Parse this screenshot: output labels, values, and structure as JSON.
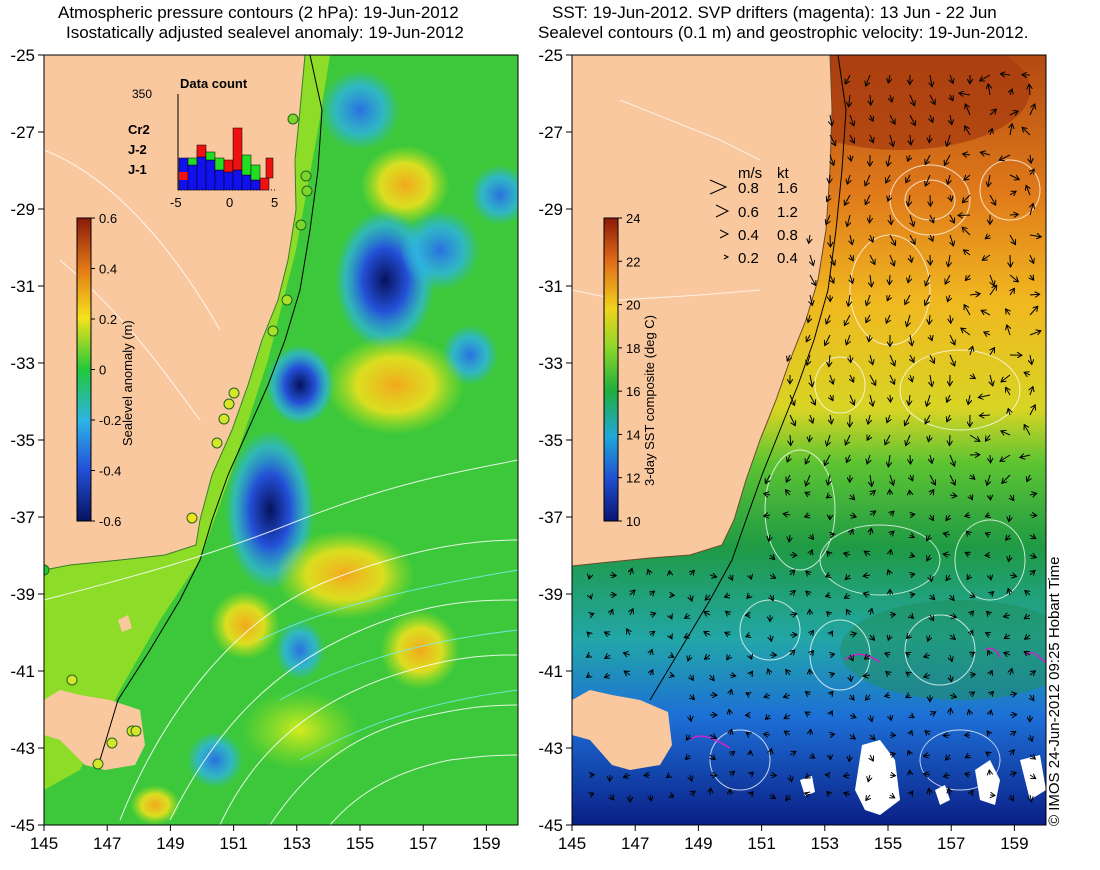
{
  "left_map": {
    "title_line1": "Atmospheric pressure contours (2 hPa): 19-Jun-2012",
    "title_line2": "Isostatically adjusted sealevel anomaly: 19-Jun-2012",
    "colorbar": {
      "label": "Sealevel anomaly (m)",
      "ticks": [
        "0.6",
        "0.4",
        "0.2",
        "0",
        "-0.2",
        "-0.4",
        "-0.6"
      ],
      "range": [
        -0.6,
        0.6
      ]
    },
    "inset": {
      "title": "Data count",
      "y_max_label": "350",
      "x_ticks": [
        "-5",
        "0",
        "5"
      ],
      "x_range": [
        -5,
        5
      ],
      "legend": [
        {
          "label": "Cr2",
          "color": "#22dd22"
        },
        {
          "label": "J-2",
          "color": "#ee1111"
        },
        {
          "label": "J-1",
          "color": "#1111ee"
        }
      ]
    }
  },
  "right_map": {
    "title_line1": "SST: 19-Jun-2012. SVP drifters (magenta): 13 Jun - 22 Jun",
    "title_line2": "Sealevel contours (0.1 m) and geostrophic velocity: 19-Jun-2012.",
    "colorbar": {
      "label": "3-day SST composite (deg C)",
      "ticks": [
        "24",
        "22",
        "20",
        "18",
        "16",
        "14",
        "12",
        "10"
      ],
      "range": [
        10,
        24
      ]
    },
    "velocity_legend": {
      "header_ms": "m/s",
      "header_kt": "kt",
      "rows": [
        {
          "ms": "0.8",
          "kt": "1.6"
        },
        {
          "ms": "0.6",
          "kt": "1.2"
        },
        {
          "ms": "0.4",
          "kt": "0.8"
        },
        {
          "ms": "0.2",
          "kt": "0.4"
        }
      ]
    }
  },
  "axes": {
    "lat_ticks": [
      "-25",
      "-27",
      "-29",
      "-31",
      "-33",
      "-35",
      "-37",
      "-39",
      "-41",
      "-43",
      "-45"
    ],
    "lon_ticks": [
      "145",
      "147",
      "149",
      "151",
      "153",
      "155",
      "157",
      "159"
    ],
    "lat_range": [
      -45,
      -25
    ],
    "lon_range": [
      145,
      160
    ]
  },
  "colors": {
    "land": "#f9c89f",
    "ssl_high": "#f2a81e",
    "ssl_mid": "#22c83a",
    "ssl_low": "#0a1e88",
    "sst_warm": "#c25814",
    "sst_mid": "#2aa83a",
    "sst_cold": "#0e2b9a"
  },
  "credit": "© IMOS 24-Jun-2012 09:25 Hobart Time"
}
